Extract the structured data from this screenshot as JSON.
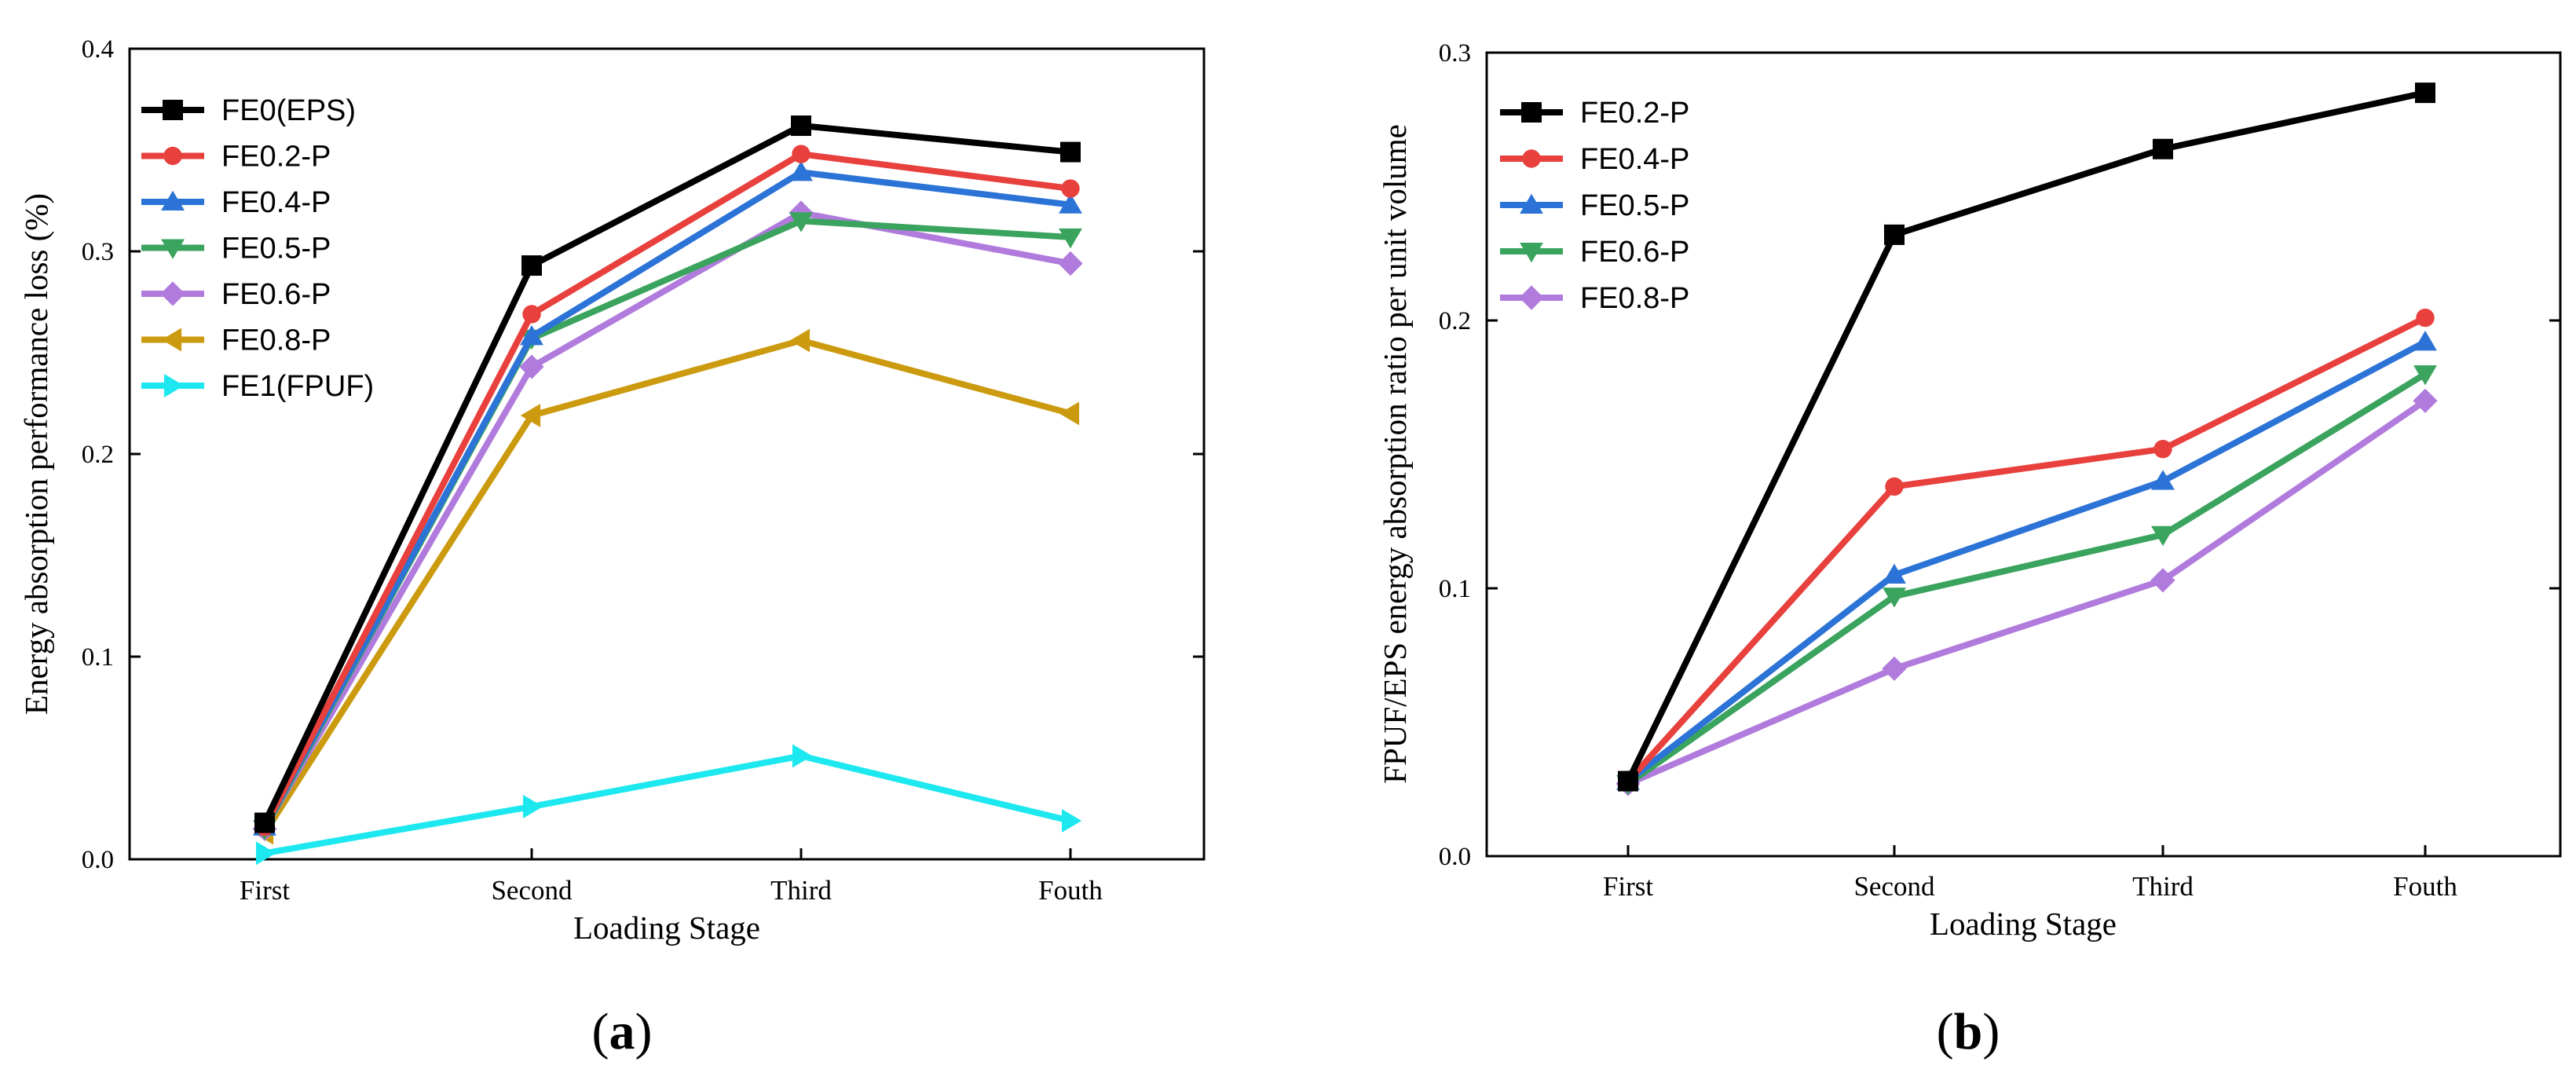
{
  "chart_data": [
    {
      "type": "line",
      "panel_label": "a",
      "title": "",
      "xlabel": "Loading Stage",
      "ylabel": "Energy absorption performance loss (%)",
      "categories": [
        "First",
        "Second",
        "Third",
        "Fouth"
      ],
      "ylim": [
        0.0,
        0.4
      ],
      "yticks": [
        "0.0",
        "0.1",
        "0.2",
        "0.3",
        "0.4"
      ],
      "legend_position": "top-left",
      "grid": false,
      "series": [
        {
          "name": "FE0(EPS)",
          "color": "#000000",
          "marker": "square",
          "values": [
            0.018,
            0.293,
            0.362,
            0.349
          ]
        },
        {
          "name": "FE0.2-P",
          "color": "#e8403d",
          "marker": "circle",
          "values": [
            0.016,
            0.269,
            0.348,
            0.331
          ]
        },
        {
          "name": "FE0.4-P",
          "color": "#2b73d6",
          "marker": "triangle-up",
          "values": [
            0.016,
            0.258,
            0.339,
            0.323
          ]
        },
        {
          "name": "FE0.5-P",
          "color": "#3aa35d",
          "marker": "triangle-down",
          "values": [
            0.015,
            0.257,
            0.315,
            0.307
          ]
        },
        {
          "name": "FE0.6-P",
          "color": "#b07bdc",
          "marker": "diamond",
          "values": [
            0.015,
            0.243,
            0.319,
            0.294
          ]
        },
        {
          "name": "FE0.8-P",
          "color": "#cc9a0e",
          "marker": "triangle-left",
          "values": [
            0.013,
            0.219,
            0.256,
            0.22
          ]
        },
        {
          "name": "FE1(FPUF)",
          "color": "#1ee8ef",
          "marker": "triangle-right",
          "values": [
            0.003,
            0.026,
            0.051,
            0.019
          ]
        }
      ]
    },
    {
      "type": "line",
      "panel_label": "b",
      "title": "",
      "xlabel": "Loading Stage",
      "ylabel": "FPUF/EPS energy absorption ratio per unit volume",
      "categories": [
        "First",
        "Second",
        "Third",
        "Fouth"
      ],
      "ylim": [
        0.0,
        0.3
      ],
      "yticks": [
        "0.0",
        "0.1",
        "0.2",
        "0.3"
      ],
      "legend_position": "top-left",
      "grid": false,
      "series": [
        {
          "name": "FE0.2-P",
          "color": "#000000",
          "marker": "square",
          "values": [
            0.028,
            0.232,
            0.264,
            0.285
          ]
        },
        {
          "name": "FE0.4-P",
          "color": "#e8403d",
          "marker": "circle",
          "values": [
            0.028,
            0.138,
            0.152,
            0.201
          ]
        },
        {
          "name": "FE0.5-P",
          "color": "#2b73d6",
          "marker": "triangle-up",
          "values": [
            0.028,
            0.105,
            0.14,
            0.192
          ]
        },
        {
          "name": "FE0.6-P",
          "color": "#3aa35d",
          "marker": "triangle-down",
          "values": [
            0.027,
            0.097,
            0.12,
            0.18
          ]
        },
        {
          "name": "FE0.8-P",
          "color": "#b07bdc",
          "marker": "diamond",
          "values": [
            0.027,
            0.07,
            0.103,
            0.17
          ]
        }
      ]
    }
  ]
}
